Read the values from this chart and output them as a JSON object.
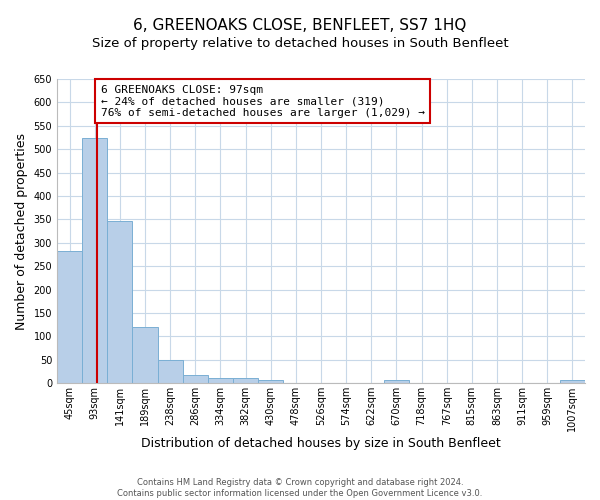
{
  "title": "6, GREENOAKS CLOSE, BENFLEET, SS7 1HQ",
  "subtitle": "Size of property relative to detached houses in South Benfleet",
  "xlabel": "Distribution of detached houses by size in South Benfleet",
  "ylabel": "Number of detached properties",
  "categories": [
    "45sqm",
    "93sqm",
    "141sqm",
    "189sqm",
    "238sqm",
    "286sqm",
    "334sqm",
    "382sqm",
    "430sqm",
    "478sqm",
    "526sqm",
    "574sqm",
    "622sqm",
    "670sqm",
    "718sqm",
    "767sqm",
    "815sqm",
    "863sqm",
    "911sqm",
    "959sqm",
    "1007sqm"
  ],
  "values": [
    283,
    524,
    347,
    120,
    49,
    17,
    11,
    11,
    8,
    0,
    0,
    0,
    0,
    8,
    0,
    0,
    0,
    0,
    0,
    0,
    8
  ],
  "bar_color": "#b8cfe8",
  "bar_edge_color": "#7aafd4",
  "ylim": [
    0,
    650
  ],
  "yticks": [
    0,
    50,
    100,
    150,
    200,
    250,
    300,
    350,
    400,
    450,
    500,
    550,
    600,
    650
  ],
  "annotation_line1": "6 GREENOAKS CLOSE: 97sqm",
  "annotation_line2": "← 24% of detached houses are smaller (319)",
  "annotation_line3": "76% of semi-detached houses are larger (1,029) →",
  "annotation_box_color": "#cc0000",
  "footer1": "Contains HM Land Registry data © Crown copyright and database right 2024.",
  "footer2": "Contains public sector information licensed under the Open Government Licence v3.0.",
  "background_color": "#ffffff",
  "grid_color": "#c8d8e8",
  "title_fontsize": 11,
  "subtitle_fontsize": 9.5,
  "axis_label_fontsize": 9,
  "tick_fontsize": 7,
  "annotation_fontsize": 8
}
